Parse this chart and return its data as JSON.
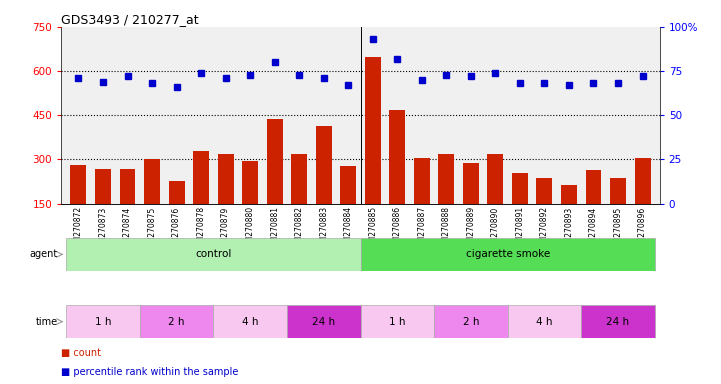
{
  "title": "GDS3493 / 210277_at",
  "samples": [
    "GSM270872",
    "GSM270873",
    "GSM270874",
    "GSM270875",
    "GSM270876",
    "GSM270878",
    "GSM270879",
    "GSM270880",
    "GSM270881",
    "GSM270882",
    "GSM270883",
    "GSM270884",
    "GSM270885",
    "GSM270886",
    "GSM270887",
    "GSM270888",
    "GSM270889",
    "GSM270890",
    "GSM270891",
    "GSM270892",
    "GSM270893",
    "GSM270894",
    "GSM270895",
    "GSM270896"
  ],
  "counts": [
    280,
    268,
    268,
    300,
    228,
    330,
    318,
    293,
    438,
    318,
    413,
    278,
    648,
    468,
    303,
    318,
    288,
    318,
    253,
    238,
    213,
    263,
    238,
    303
  ],
  "percentiles": [
    71,
    69,
    72,
    68,
    66,
    74,
    71,
    73,
    80,
    73,
    71,
    67,
    93,
    82,
    70,
    73,
    72,
    74,
    68,
    68,
    67,
    68,
    68,
    72
  ],
  "bar_color": "#cc2200",
  "dot_color": "#0000cc",
  "ylim_left": [
    150,
    750
  ],
  "ylim_right": [
    0,
    100
  ],
  "yticks_left": [
    150,
    300,
    450,
    600,
    750
  ],
  "yticks_right": [
    0,
    25,
    50,
    75,
    100
  ],
  "grid_values": [
    300,
    450,
    600
  ],
  "agent_groups": [
    {
      "label": "control",
      "start": 0,
      "end": 11,
      "color": "#b2f0b2"
    },
    {
      "label": "cigarette smoke",
      "start": 12,
      "end": 23,
      "color": "#55dd55"
    }
  ],
  "time_groups": [
    {
      "label": "1 h",
      "start": 0,
      "end": 2,
      "color": "#f9c8f0"
    },
    {
      "label": "2 h",
      "start": 3,
      "end": 5,
      "color": "#ee88ee"
    },
    {
      "label": "4 h",
      "start": 6,
      "end": 8,
      "color": "#f9c8f0"
    },
    {
      "label": "24 h",
      "start": 9,
      "end": 11,
      "color": "#cc33cc"
    },
    {
      "label": "1 h",
      "start": 12,
      "end": 14,
      "color": "#f9c8f0"
    },
    {
      "label": "2 h",
      "start": 15,
      "end": 17,
      "color": "#ee88ee"
    },
    {
      "label": "4 h",
      "start": 18,
      "end": 20,
      "color": "#f9c8f0"
    },
    {
      "label": "24 h",
      "start": 21,
      "end": 23,
      "color": "#cc33cc"
    }
  ],
  "count_label": "count",
  "percentile_label": "percentile rank within the sample",
  "count_color": "#cc2200",
  "percentile_color": "#0000cc",
  "background_color": "#ffffff"
}
